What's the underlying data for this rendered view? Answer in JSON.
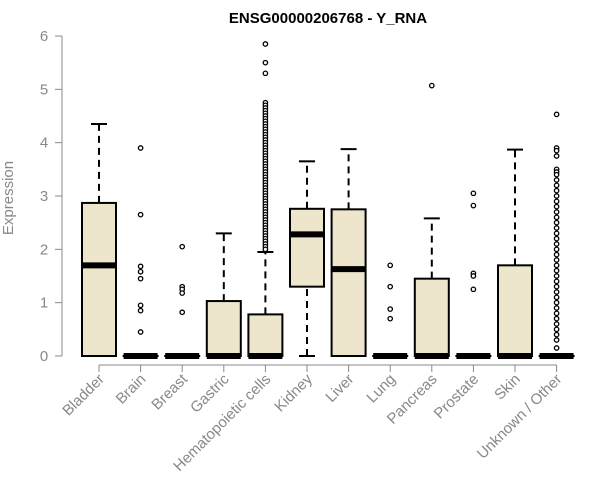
{
  "chart_data": {
    "type": "box",
    "title": "ENSG00000206768 - Y_RNA",
    "xlabel": "",
    "ylabel": "Expression",
    "ylim": [
      0,
      6
    ],
    "yticks": [
      0,
      1,
      2,
      3,
      4,
      5,
      6
    ],
    "grid": false,
    "legend": "none",
    "colors": {
      "box_fill": "#ede6cc",
      "stroke": "#000000",
      "axis": "#888888",
      "title": "#000000"
    },
    "categories": [
      "Bladder",
      "Brain",
      "Breast",
      "Gastric",
      "Hematopoietic cells",
      "Kidney",
      "Liver",
      "Lung",
      "Pancreas",
      "Prostate",
      "Skin",
      "Unknown / Other"
    ],
    "boxes": [
      {
        "category": "Bladder",
        "min": 0,
        "q1": 0,
        "median": 1.7,
        "q3": 2.87,
        "max": 4.35,
        "outliers": []
      },
      {
        "category": "Brain",
        "min": 0,
        "q1": 0,
        "median": 0,
        "q3": 0,
        "max": 0,
        "outliers": [
          3.9,
          2.65,
          1.68,
          1.58,
          1.45,
          0.95,
          0.85,
          0.45
        ]
      },
      {
        "category": "Breast",
        "min": 0,
        "q1": 0,
        "median": 0,
        "q3": 0,
        "max": 0,
        "outliers": [
          2.05,
          1.3,
          1.25,
          1.18,
          0.82
        ]
      },
      {
        "category": "Gastric",
        "min": 0,
        "q1": 0,
        "median": 0,
        "q3": 1.03,
        "max": 2.3,
        "outliers": []
      },
      {
        "category": "Hematopoietic cells",
        "min": 0,
        "q1": 0,
        "median": 0,
        "q3": 0.78,
        "max": 1.95,
        "outliers": [
          5.85,
          5.5,
          5.3,
          4.75,
          4.7,
          4.65,
          4.6,
          4.55,
          4.5,
          4.45,
          4.4,
          4.35,
          4.3,
          4.25,
          4.2,
          4.15,
          4.1,
          4.05,
          4.0,
          3.95,
          3.9,
          3.85,
          3.8,
          3.75,
          3.7,
          3.65,
          3.6,
          3.55,
          3.5,
          3.45,
          3.4,
          3.35,
          3.3,
          3.25,
          3.2,
          3.15,
          3.1,
          3.05,
          3.0,
          2.95,
          2.9,
          2.85,
          2.8,
          2.75,
          2.7,
          2.65,
          2.6,
          2.55,
          2.5,
          2.45,
          2.4,
          2.35,
          2.3,
          2.25,
          2.2,
          2.15,
          2.1,
          2.05,
          2.0
        ]
      },
      {
        "category": "Kidney",
        "min": 0,
        "q1": 1.3,
        "median": 2.28,
        "q3": 2.76,
        "max": 3.65,
        "outliers": []
      },
      {
        "category": "Liver",
        "min": 0,
        "q1": 0,
        "median": 1.63,
        "q3": 2.75,
        "max": 3.88,
        "outliers": []
      },
      {
        "category": "Lung",
        "min": 0,
        "q1": 0,
        "median": 0,
        "q3": 0,
        "max": 0,
        "outliers": [
          1.7,
          1.3,
          0.88,
          0.7
        ]
      },
      {
        "category": "Pancreas",
        "min": 0,
        "q1": 0,
        "median": 0,
        "q3": 1.45,
        "max": 2.58,
        "outliers": [
          5.07
        ]
      },
      {
        "category": "Prostate",
        "min": 0,
        "q1": 0,
        "median": 0,
        "q3": 0,
        "max": 0,
        "outliers": [
          3.05,
          2.82,
          1.55,
          1.5,
          1.25
        ]
      },
      {
        "category": "Skin",
        "min": 0,
        "q1": 0,
        "median": 0,
        "q3": 1.7,
        "max": 3.87,
        "outliers": []
      },
      {
        "category": "Unknown / Other",
        "min": 0,
        "q1": 0,
        "median": 0,
        "q3": 0,
        "max": 0,
        "outliers": [
          4.53,
          3.9,
          3.85,
          3.75,
          3.5,
          3.45,
          3.4,
          3.3,
          3.2,
          3.1,
          3.0,
          2.9,
          2.8,
          2.7,
          2.6,
          2.5,
          2.4,
          2.3,
          2.2,
          2.1,
          2.0,
          1.9,
          1.8,
          1.7,
          1.6,
          1.5,
          1.4,
          1.3,
          1.2,
          1.1,
          1.0,
          0.9,
          0.8,
          0.7,
          0.6,
          0.5,
          0.4,
          0.3,
          0.15
        ]
      }
    ]
  }
}
